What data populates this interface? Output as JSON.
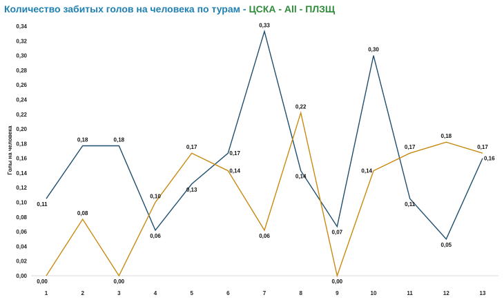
{
  "chart_data": {
    "type": "line",
    "title_parts": [
      {
        "text": "Количество забитых голов на человека по турам",
        "color": "#1f7fb0"
      },
      {
        "text": " - ",
        "color": "#1f7fb0"
      },
      {
        "text": "ЦСКА",
        "color": "#2e8b3a"
      },
      {
        "text": " - ",
        "color": "#2e8b3a"
      },
      {
        "text": "All",
        "color": "#2e8b3a"
      },
      {
        "text": " - ",
        "color": "#2e8b3a"
      },
      {
        "text": "ПЛЗЩ",
        "color": "#2e8b3a"
      }
    ],
    "ylabel": "Голы на человека",
    "xlabel": "",
    "x": [
      1,
      2,
      3,
      4,
      5,
      6,
      7,
      8,
      9,
      10,
      11,
      12,
      13
    ],
    "x_tick_labels": [
      "1",
      "2",
      "3",
      "4",
      "5",
      "6",
      "7",
      "8",
      "9",
      "10",
      "11",
      "12",
      "13"
    ],
    "ylim": [
      0,
      0.34
    ],
    "y_ticks": [
      0,
      0.02,
      0.04,
      0.06,
      0.08,
      0.1,
      0.12,
      0.14,
      0.16,
      0.18,
      0.2,
      0.22,
      0.24,
      0.26,
      0.28,
      0.3,
      0.32,
      0.34
    ],
    "y_tick_labels": [
      "0,00",
      "0,02",
      "0,04",
      "0,06",
      "0,08",
      "0,10",
      "0,12",
      "0,14",
      "0,16",
      "0,18",
      "0,20",
      "0,22",
      "0,24",
      "0,26",
      "0,28",
      "0,30",
      "0,32",
      "0,34"
    ],
    "grid": false,
    "series": [
      {
        "color": "#1f4e6e",
        "values": [
          0.105,
          0.177,
          0.177,
          0.062,
          0.125,
          0.167,
          0.333,
          0.143,
          0.067,
          0.3,
          0.105,
          0.05,
          0.16
        ],
        "labels": [
          "0,11",
          "0,18",
          "0,18",
          "0,06",
          "0,13",
          "0,17",
          "0,33",
          "0,14",
          "0,07",
          "0,30",
          "0,11",
          "0,05",
          "0,16"
        ],
        "label_pos": [
          "below",
          "above",
          "above",
          "below",
          "below",
          "right",
          "above",
          "below",
          "below",
          "above",
          "below",
          "below",
          "right"
        ]
      },
      {
        "color": "#c88a10",
        "values": [
          0.0,
          0.077,
          0.0,
          0.1,
          0.167,
          0.143,
          0.062,
          0.222,
          0.0,
          0.143,
          0.167,
          0.182,
          0.167
        ],
        "labels": [
          "0,00",
          "0,08",
          "0,00",
          "0,10",
          "0,17",
          "0,14",
          "0,06",
          "0,22",
          "0,00",
          "0,14",
          "0,17",
          "0,18",
          "0,17"
        ],
        "label_pos": [
          "below",
          "above",
          "below",
          "above",
          "above",
          "right",
          "below",
          "above",
          "below",
          "left",
          "above",
          "above",
          "above"
        ]
      }
    ]
  }
}
